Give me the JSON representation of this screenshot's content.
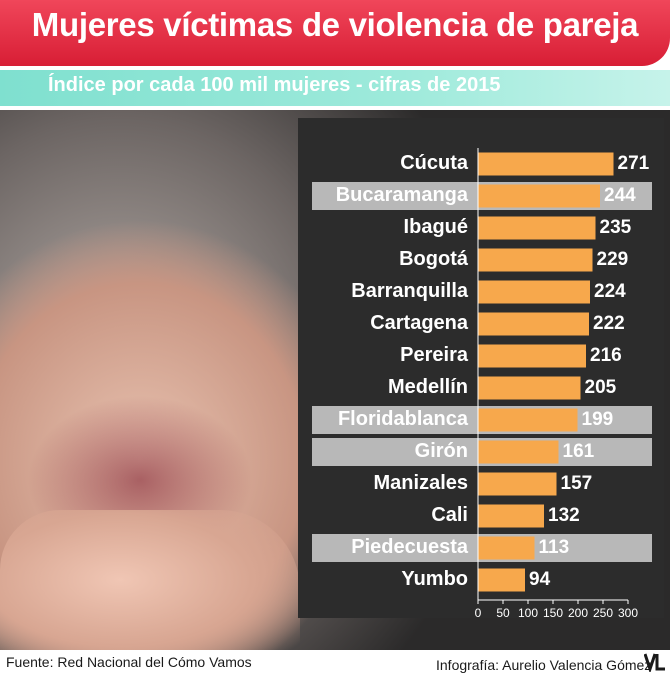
{
  "header": {
    "title": "Mujeres víctimas de violencia de pareja",
    "subtitle": "Índice por cada 100 mil mujeres - cifras de 2015"
  },
  "chart_data": {
    "type": "bar",
    "orientation": "horizontal",
    "categories": [
      "Cúcuta",
      "Bucaramanga",
      "Ibagué",
      "Bogotá",
      "Barranquilla",
      "Cartagena",
      "Pereira",
      "Medellín",
      "Floridablanca",
      "Girón",
      "Manizales",
      "Cali",
      "Piedecuesta",
      "Yumbo"
    ],
    "values": [
      271,
      244,
      235,
      229,
      224,
      222,
      216,
      205,
      199,
      161,
      157,
      132,
      113,
      94
    ],
    "highlighted": [
      false,
      true,
      false,
      false,
      false,
      false,
      false,
      false,
      true,
      true,
      false,
      false,
      true,
      false
    ],
    "xticks": [
      "0",
      "50",
      "100",
      "150",
      "200",
      "250",
      "300"
    ],
    "xlim": [
      0,
      300
    ],
    "bar_color": "#f7a84c",
    "highlight_row_color": "#b8b8b8",
    "gridlines": false
  },
  "footer": {
    "source": "Fuente: Red Nacional del Cómo Vamos",
    "credit": "Infografía: Aurelio Valencia Gómez"
  }
}
